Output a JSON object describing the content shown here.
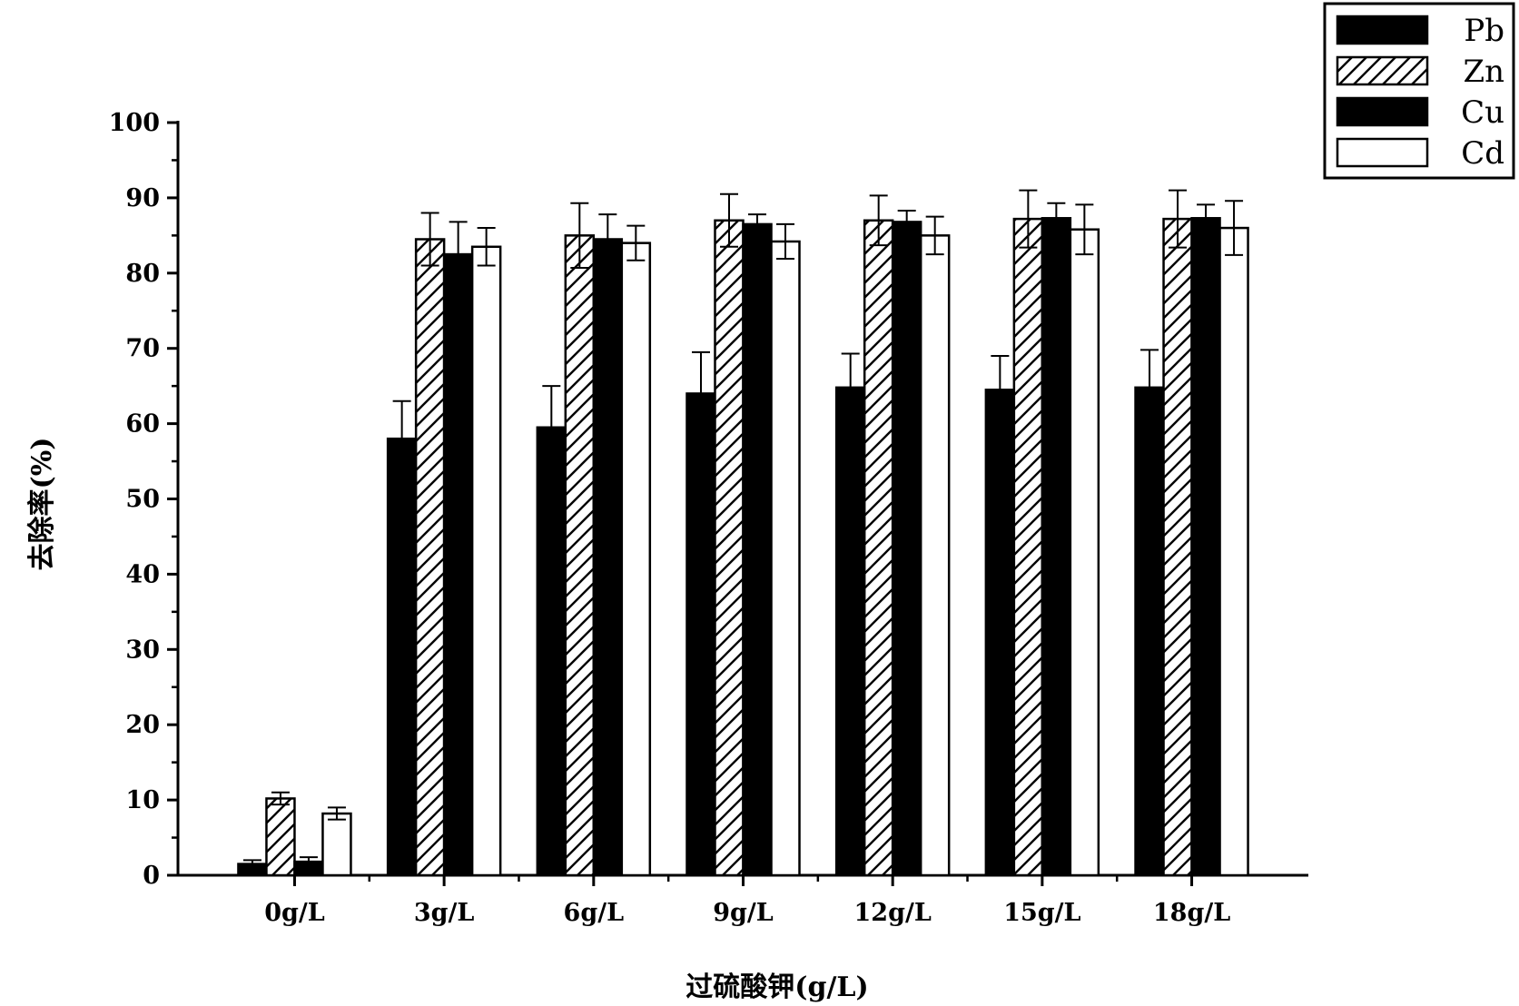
{
  "chart_data": {
    "type": "bar",
    "title": "",
    "xlabel": "过硫酸钾(g/L)",
    "ylabel": "去除率(%)",
    "ylim": [
      0,
      100
    ],
    "ytick_step": 10,
    "categories": [
      "0g/L",
      "3g/L",
      "6g/L",
      "9g/L",
      "12g/L",
      "15g/L",
      "18g/L"
    ],
    "series": [
      {
        "name": "Pb",
        "fill": "solid",
        "color": "#000000",
        "values": [
          1.5,
          58.0,
          59.5,
          64.0,
          64.8,
          64.5,
          64.8
        ],
        "errors": [
          0.5,
          5.0,
          5.5,
          5.5,
          4.5,
          4.5,
          5.0
        ]
      },
      {
        "name": "Zn",
        "fill": "hatched",
        "color": "#000000",
        "values": [
          10.2,
          84.5,
          85.0,
          87.0,
          87.0,
          87.2,
          87.2
        ],
        "errors": [
          0.8,
          3.5,
          4.3,
          3.5,
          3.3,
          3.8,
          3.8
        ]
      },
      {
        "name": "Cu",
        "fill": "solid",
        "color": "#000000",
        "values": [
          1.8,
          82.5,
          84.5,
          86.5,
          86.8,
          87.3,
          87.3
        ],
        "errors": [
          0.6,
          4.3,
          3.3,
          1.3,
          1.5,
          2.0,
          1.8
        ]
      },
      {
        "name": "Cd",
        "fill": "empty",
        "color": "#ffffff",
        "values": [
          8.2,
          83.5,
          84.0,
          84.2,
          85.0,
          85.8,
          86.0
        ],
        "errors": [
          0.8,
          2.5,
          2.3,
          2.3,
          2.5,
          3.3,
          3.6
        ]
      }
    ],
    "grid": false,
    "legend_position": "top-right"
  }
}
